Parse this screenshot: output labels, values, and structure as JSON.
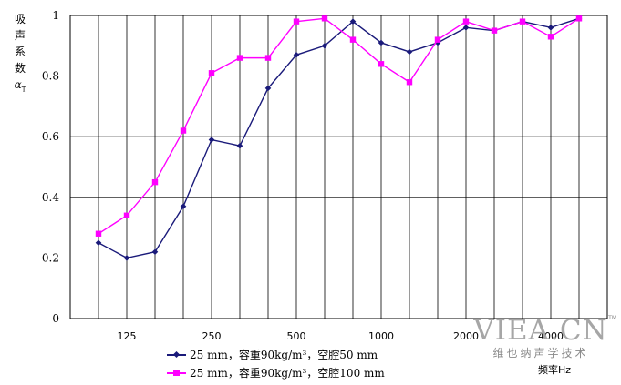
{
  "chart_data": {
    "type": "line",
    "ylabel_chars": [
      "吸",
      "声",
      "系",
      "数"
    ],
    "ylabel_symbol": "α",
    "ylabel_subscript": "T",
    "xlabel": "频率Hz",
    "x_ticks": [
      "125",
      "250",
      "500",
      "1000",
      "2000",
      "4000"
    ],
    "y_ticks": [
      "0",
      "0.2",
      "0.4",
      "0.6",
      "0.8",
      "1"
    ],
    "ylim": [
      0,
      1
    ],
    "grid": true,
    "legend_position": "bottom",
    "x": [
      "100",
      "125",
      "160",
      "200",
      "250",
      "315",
      "400",
      "500",
      "630",
      "800",
      "1000",
      "1250",
      "1600",
      "2000",
      "2500",
      "3150",
      "4000",
      "5000"
    ],
    "series": [
      {
        "name": "25 mm，容重90kg/m³，空腔50 mm",
        "color": "#1a1a7a",
        "marker": "diamond",
        "values": [
          0.25,
          0.2,
          0.22,
          0.37,
          0.59,
          0.57,
          0.76,
          0.87,
          0.9,
          0.98,
          0.91,
          0.88,
          0.91,
          0.96,
          0.95,
          0.98,
          0.96,
          0.99
        ]
      },
      {
        "name": "25 mm，容重90kg/m³，空腔100 mm",
        "color": "#ff00ff",
        "marker": "square",
        "values": [
          0.28,
          0.34,
          0.45,
          0.62,
          0.81,
          0.86,
          0.86,
          0.98,
          0.99,
          0.92,
          0.84,
          0.78,
          0.92,
          0.98,
          0.95,
          0.98,
          0.93,
          0.99
        ]
      }
    ]
  },
  "watermark": {
    "main": "VIEA.CN",
    "tm": "TM",
    "sub": "维也纳声学技术"
  }
}
